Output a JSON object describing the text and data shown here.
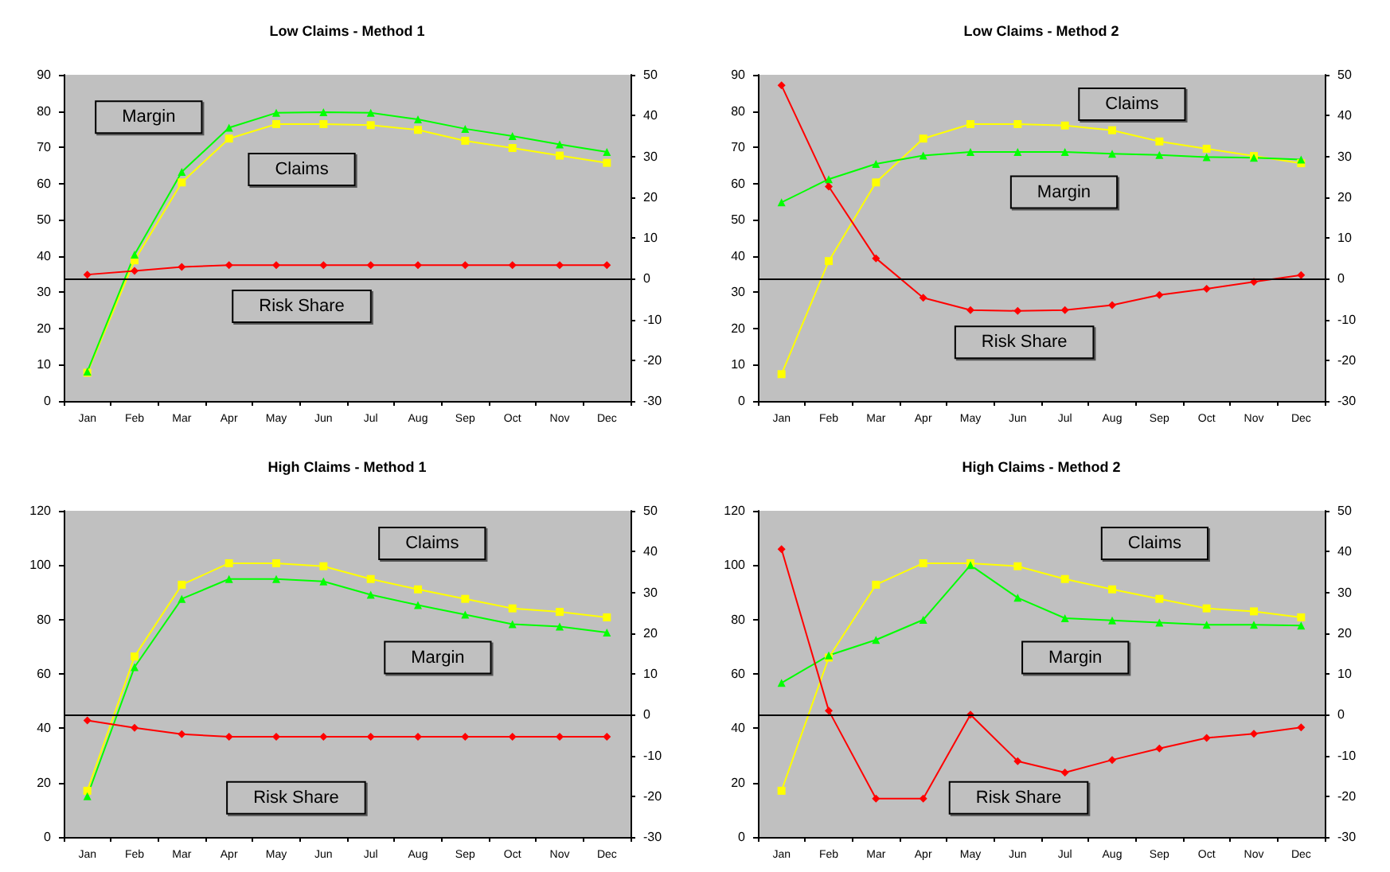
{
  "chart_data": [
    {
      "type": "line",
      "title": "Low Claims - Method 1",
      "categories": [
        "Jan",
        "Feb",
        "Mar",
        "Apr",
        "May",
        "Jun",
        "Jul",
        "Aug",
        "Sep",
        "Oct",
        "Nov",
        "Dec"
      ],
      "ylim": [
        0,
        90
      ],
      "yticks": [
        0,
        10,
        20,
        30,
        40,
        50,
        60,
        70,
        80,
        90
      ],
      "y2lim": [
        -30,
        50
      ],
      "y2ticks": [
        -30,
        -20,
        -10,
        0,
        10,
        20,
        30,
        40,
        50
      ],
      "series": [
        {
          "name": "Claims",
          "color": "#ffff00",
          "marker": "square",
          "values": [
            7.8,
            38.8,
            60.3,
            72.4,
            76.4,
            76.4,
            76.1,
            74.8,
            71.8,
            69.8,
            67.7,
            65.7
          ]
        },
        {
          "name": "Margin",
          "color": "#00ff00",
          "marker": "triangle",
          "values": [
            8.1,
            40.4,
            63.2,
            75.4,
            79.5,
            79.7,
            79.5,
            77.7,
            75.1,
            73.1,
            70.8,
            68.7
          ]
        },
        {
          "name": "Risk Share",
          "color": "#ff0000",
          "marker": "diamond",
          "axis": "y2",
          "values": [
            1,
            1.9,
            2.9,
            3.3,
            3.3,
            3.3,
            3.3,
            3.3,
            3.3,
            3.3,
            3.3,
            3.3
          ]
        }
      ],
      "ref_lines": [
        {
          "axis": "y2",
          "value": 0,
          "color": "#000000"
        }
      ]
    },
    {
      "type": "line",
      "title": "Low Claims - Method 2",
      "categories": [
        "Jan",
        "Feb",
        "Mar",
        "Apr",
        "May",
        "Jun",
        "Jul",
        "Aug",
        "Sep",
        "Oct",
        "Nov",
        "Dec"
      ],
      "ylim": [
        0,
        90
      ],
      "yticks": [
        0,
        10,
        20,
        30,
        40,
        50,
        60,
        70,
        80,
        90
      ],
      "y2lim": [
        -30,
        50
      ],
      "y2ticks": [
        -30,
        -20,
        -10,
        0,
        10,
        20,
        30,
        40,
        50
      ],
      "series": [
        {
          "name": "Claims",
          "color": "#ffff00",
          "marker": "square",
          "values": [
            7.4,
            38.6,
            60.3,
            72.4,
            76.4,
            76.4,
            76,
            74.7,
            71.6,
            69.6,
            67.6,
            65.6
          ]
        },
        {
          "name": "Margin",
          "color": "#00ff00",
          "marker": "triangle",
          "values": [
            54.8,
            61.2,
            65.4,
            67.7,
            68.7,
            68.7,
            68.7,
            68.2,
            67.9,
            67.3,
            67.1,
            66.6
          ]
        },
        {
          "name": "Risk Share",
          "color": "#ff0000",
          "marker": "diamond",
          "axis": "y2",
          "values": [
            47.4,
            22.6,
            5,
            -4.7,
            -7.7,
            -7.9,
            -7.7,
            -6.5,
            -4,
            -2.5,
            -0.8,
            0.9
          ]
        }
      ],
      "ref_lines": [
        {
          "axis": "y2",
          "value": 0,
          "color": "#000000"
        }
      ]
    },
    {
      "type": "line",
      "title": "High Claims - Method 1",
      "categories": [
        "Jan",
        "Feb",
        "Mar",
        "Apr",
        "May",
        "Jun",
        "Jul",
        "Aug",
        "Sep",
        "Oct",
        "Nov",
        "Dec"
      ],
      "ylim": [
        0,
        120
      ],
      "yticks": [
        0,
        20,
        40,
        60,
        80,
        100,
        120
      ],
      "y2lim": [
        -30,
        50
      ],
      "y2ticks": [
        -30,
        -20,
        -10,
        0,
        10,
        20,
        30,
        40,
        50
      ],
      "series": [
        {
          "name": "Claims",
          "color": "#ffff00",
          "marker": "square",
          "values": [
            17,
            66.4,
            92.8,
            100.7,
            100.7,
            99.6,
            94.9,
            91.1,
            87.6,
            84.1,
            82.8,
            80.8
          ]
        },
        {
          "name": "Margin",
          "color": "#00ff00",
          "marker": "triangle",
          "values": [
            15,
            62.5,
            87.6,
            94.9,
            94.9,
            94,
            89.1,
            85.3,
            81.8,
            78.3,
            77.4,
            75.2
          ]
        },
        {
          "name": "Risk Share",
          "color": "#ff0000",
          "marker": "diamond",
          "axis": "y2",
          "values": [
            -1.4,
            -3.2,
            -4.8,
            -5.4,
            -5.4,
            -5.4,
            -5.4,
            -5.4,
            -5.4,
            -5.4,
            -5.4,
            -5.4
          ]
        }
      ],
      "ref_lines": [
        {
          "axis": "y2",
          "value": 0,
          "color": "#000000"
        }
      ]
    },
    {
      "type": "line",
      "title": "High Claims - Method 2",
      "categories": [
        "Jan",
        "Feb",
        "Mar",
        "Apr",
        "May",
        "Jun",
        "Jul",
        "Aug",
        "Sep",
        "Oct",
        "Nov",
        "Dec"
      ],
      "ylim": [
        0,
        120
      ],
      "yticks": [
        0,
        20,
        40,
        60,
        80,
        100,
        120
      ],
      "y2lim": [
        -30,
        50
      ],
      "y2ticks": [
        -30,
        -20,
        -10,
        0,
        10,
        20,
        30,
        40,
        50
      ],
      "series": [
        {
          "name": "Claims",
          "color": "#ffff00",
          "marker": "square",
          "values": [
            17,
            66,
            92.8,
            100.7,
            100.7,
            99.6,
            94.9,
            91.1,
            87.6,
            84.1,
            83,
            80.8
          ]
        },
        {
          "name": "Margin",
          "color": "#00ff00",
          "marker": "triangle",
          "values": [
            56.7,
            66.8,
            72.5,
            79.9,
            100,
            88,
            80.5,
            79.7,
            78.9,
            78.1,
            78.1,
            77.8
          ]
        },
        {
          "name": "Risk Share",
          "color": "#ff0000",
          "marker": "diamond",
          "axis": "y2",
          "values": [
            40.6,
            1,
            -20.6,
            -20.6,
            0,
            -11.4,
            -14.2,
            -11.1,
            -8.3,
            -5.7,
            -4.7,
            -3.1
          ]
        }
      ],
      "ref_lines": [
        {
          "axis": "y2",
          "value": 0,
          "color": "#000000"
        }
      ]
    }
  ]
}
